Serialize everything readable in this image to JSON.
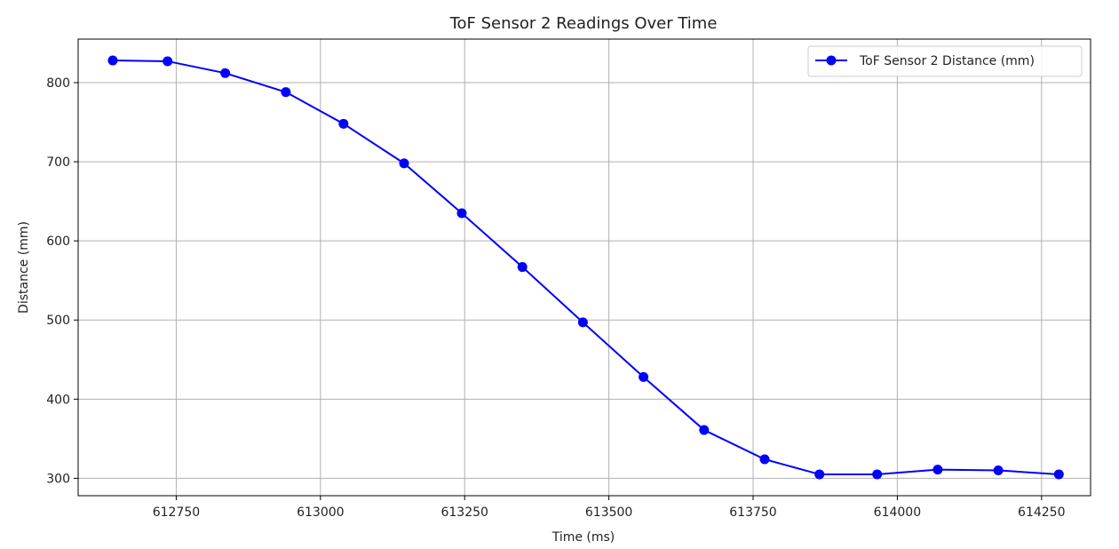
{
  "chart_data": {
    "type": "line",
    "title": "ToF Sensor 2 Readings Over Time",
    "xlabel": "Time (ms)",
    "ylabel": "Distance (mm)",
    "xlim": [
      612580,
      614335
    ],
    "ylim": [
      278,
      855
    ],
    "x_ticks": [
      612750,
      613000,
      613250,
      613500,
      613750,
      614000,
      614250
    ],
    "y_ticks": [
      300,
      400,
      500,
      600,
      700,
      800
    ],
    "grid": true,
    "legend_position": "top-right",
    "series": [
      {
        "name": "ToF Sensor 2 Distance (mm)",
        "color": "#0000ff",
        "x": [
          612640,
          612735,
          612835,
          612940,
          613040,
          613145,
          613245,
          613350,
          613455,
          613560,
          613665,
          613770,
          613865,
          613965,
          614070,
          614175,
          614280
        ],
        "y": [
          828,
          827,
          812,
          788,
          748,
          698,
          635,
          567,
          497,
          428,
          361,
          324,
          305,
          305,
          311,
          310,
          305
        ]
      }
    ]
  }
}
